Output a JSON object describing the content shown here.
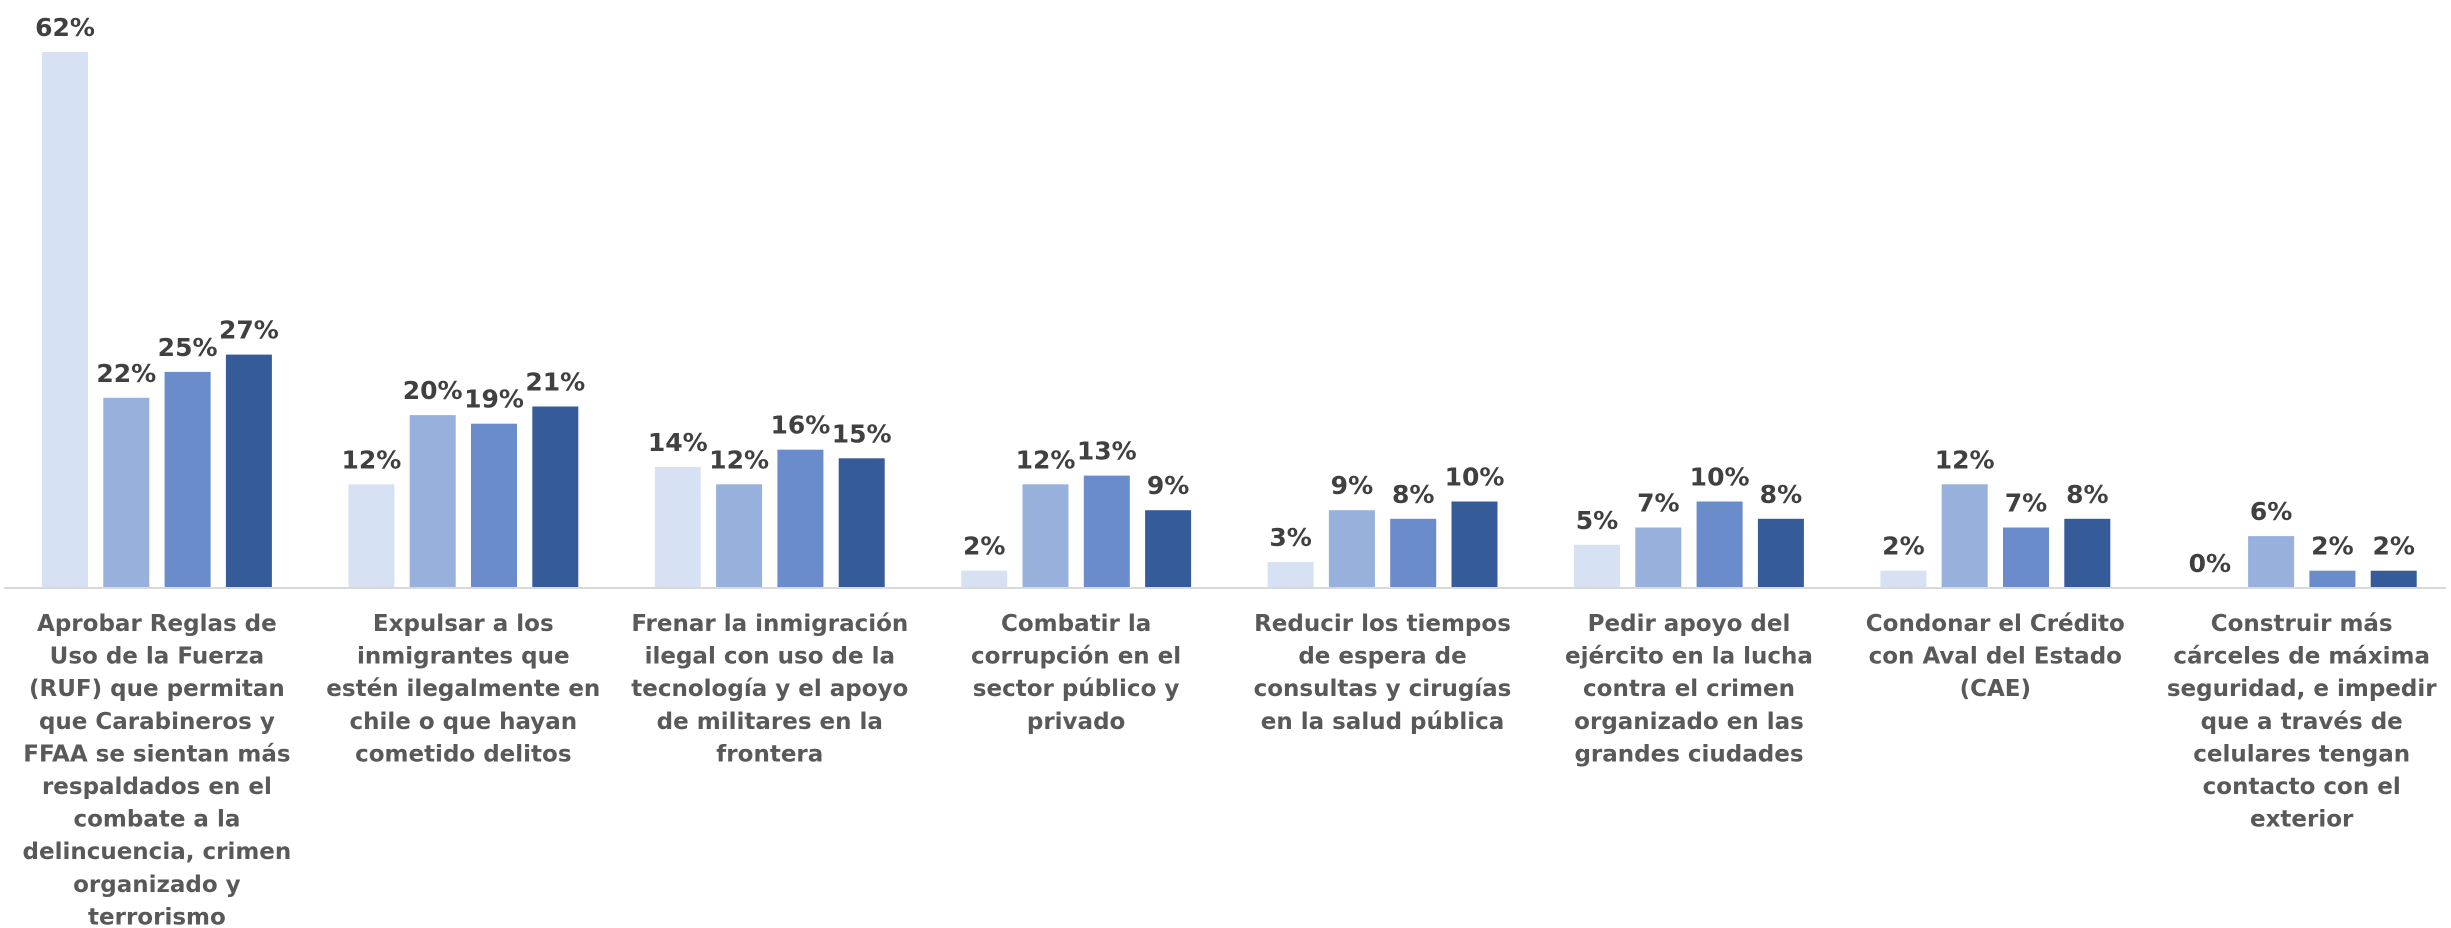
{
  "chart_data": {
    "type": "bar",
    "categories": [
      [
        "Aprobar Reglas de",
        "Uso de la Fuerza",
        "(RUF) que permitan",
        "que Carabineros y",
        "FFAA se sientan más",
        "respaldados en el",
        "combate a la",
        "delincuencia, crimen",
        "organizado y",
        "terrorismo"
      ],
      [
        "Expulsar a los",
        "inmigrantes que",
        "estén ilegalmente en",
        "chile o que hayan",
        "cometido delitos"
      ],
      [
        "Frenar la inmigración",
        "ilegal con uso de la",
        "tecnología y el apoyo",
        "de militares en la",
        "frontera"
      ],
      [
        "Combatir la",
        "corrupción en el",
        "sector público y",
        "privado"
      ],
      [
        "Reducir los tiempos",
        "de espera de",
        "consultas y cirugías",
        "en la salud pública"
      ],
      [
        "Pedir apoyo del",
        "ejército en la lucha",
        "contra el crimen",
        "organizado en las",
        "grandes ciudades"
      ],
      [
        "Condonar el Crédito",
        "con Aval del Estado",
        "(CAE)"
      ],
      [
        "Construir más",
        "cárceles de máxima",
        "seguridad, e impedir",
        "que a través de",
        "celulares tengan",
        "contacto con el",
        "exterior"
      ]
    ],
    "series": [
      {
        "color": "#d6e2f4",
        "values": [
          62,
          12,
          14,
          2,
          3,
          5,
          2,
          0
        ]
      },
      {
        "color": "#97b0dc",
        "values": [
          22,
          20,
          12,
          12,
          9,
          7,
          12,
          6
        ]
      },
      {
        "color": "#6a8cca",
        "values": [
          25,
          19,
          16,
          13,
          8,
          10,
          7,
          2
        ]
      },
      {
        "color": "#365b99",
        "values": [
          27,
          21,
          15,
          9,
          10,
          8,
          8,
          2
        ]
      }
    ],
    "value_suffix": "%",
    "ylim": [
      0,
      62
    ],
    "grid": false,
    "legend": "none"
  }
}
